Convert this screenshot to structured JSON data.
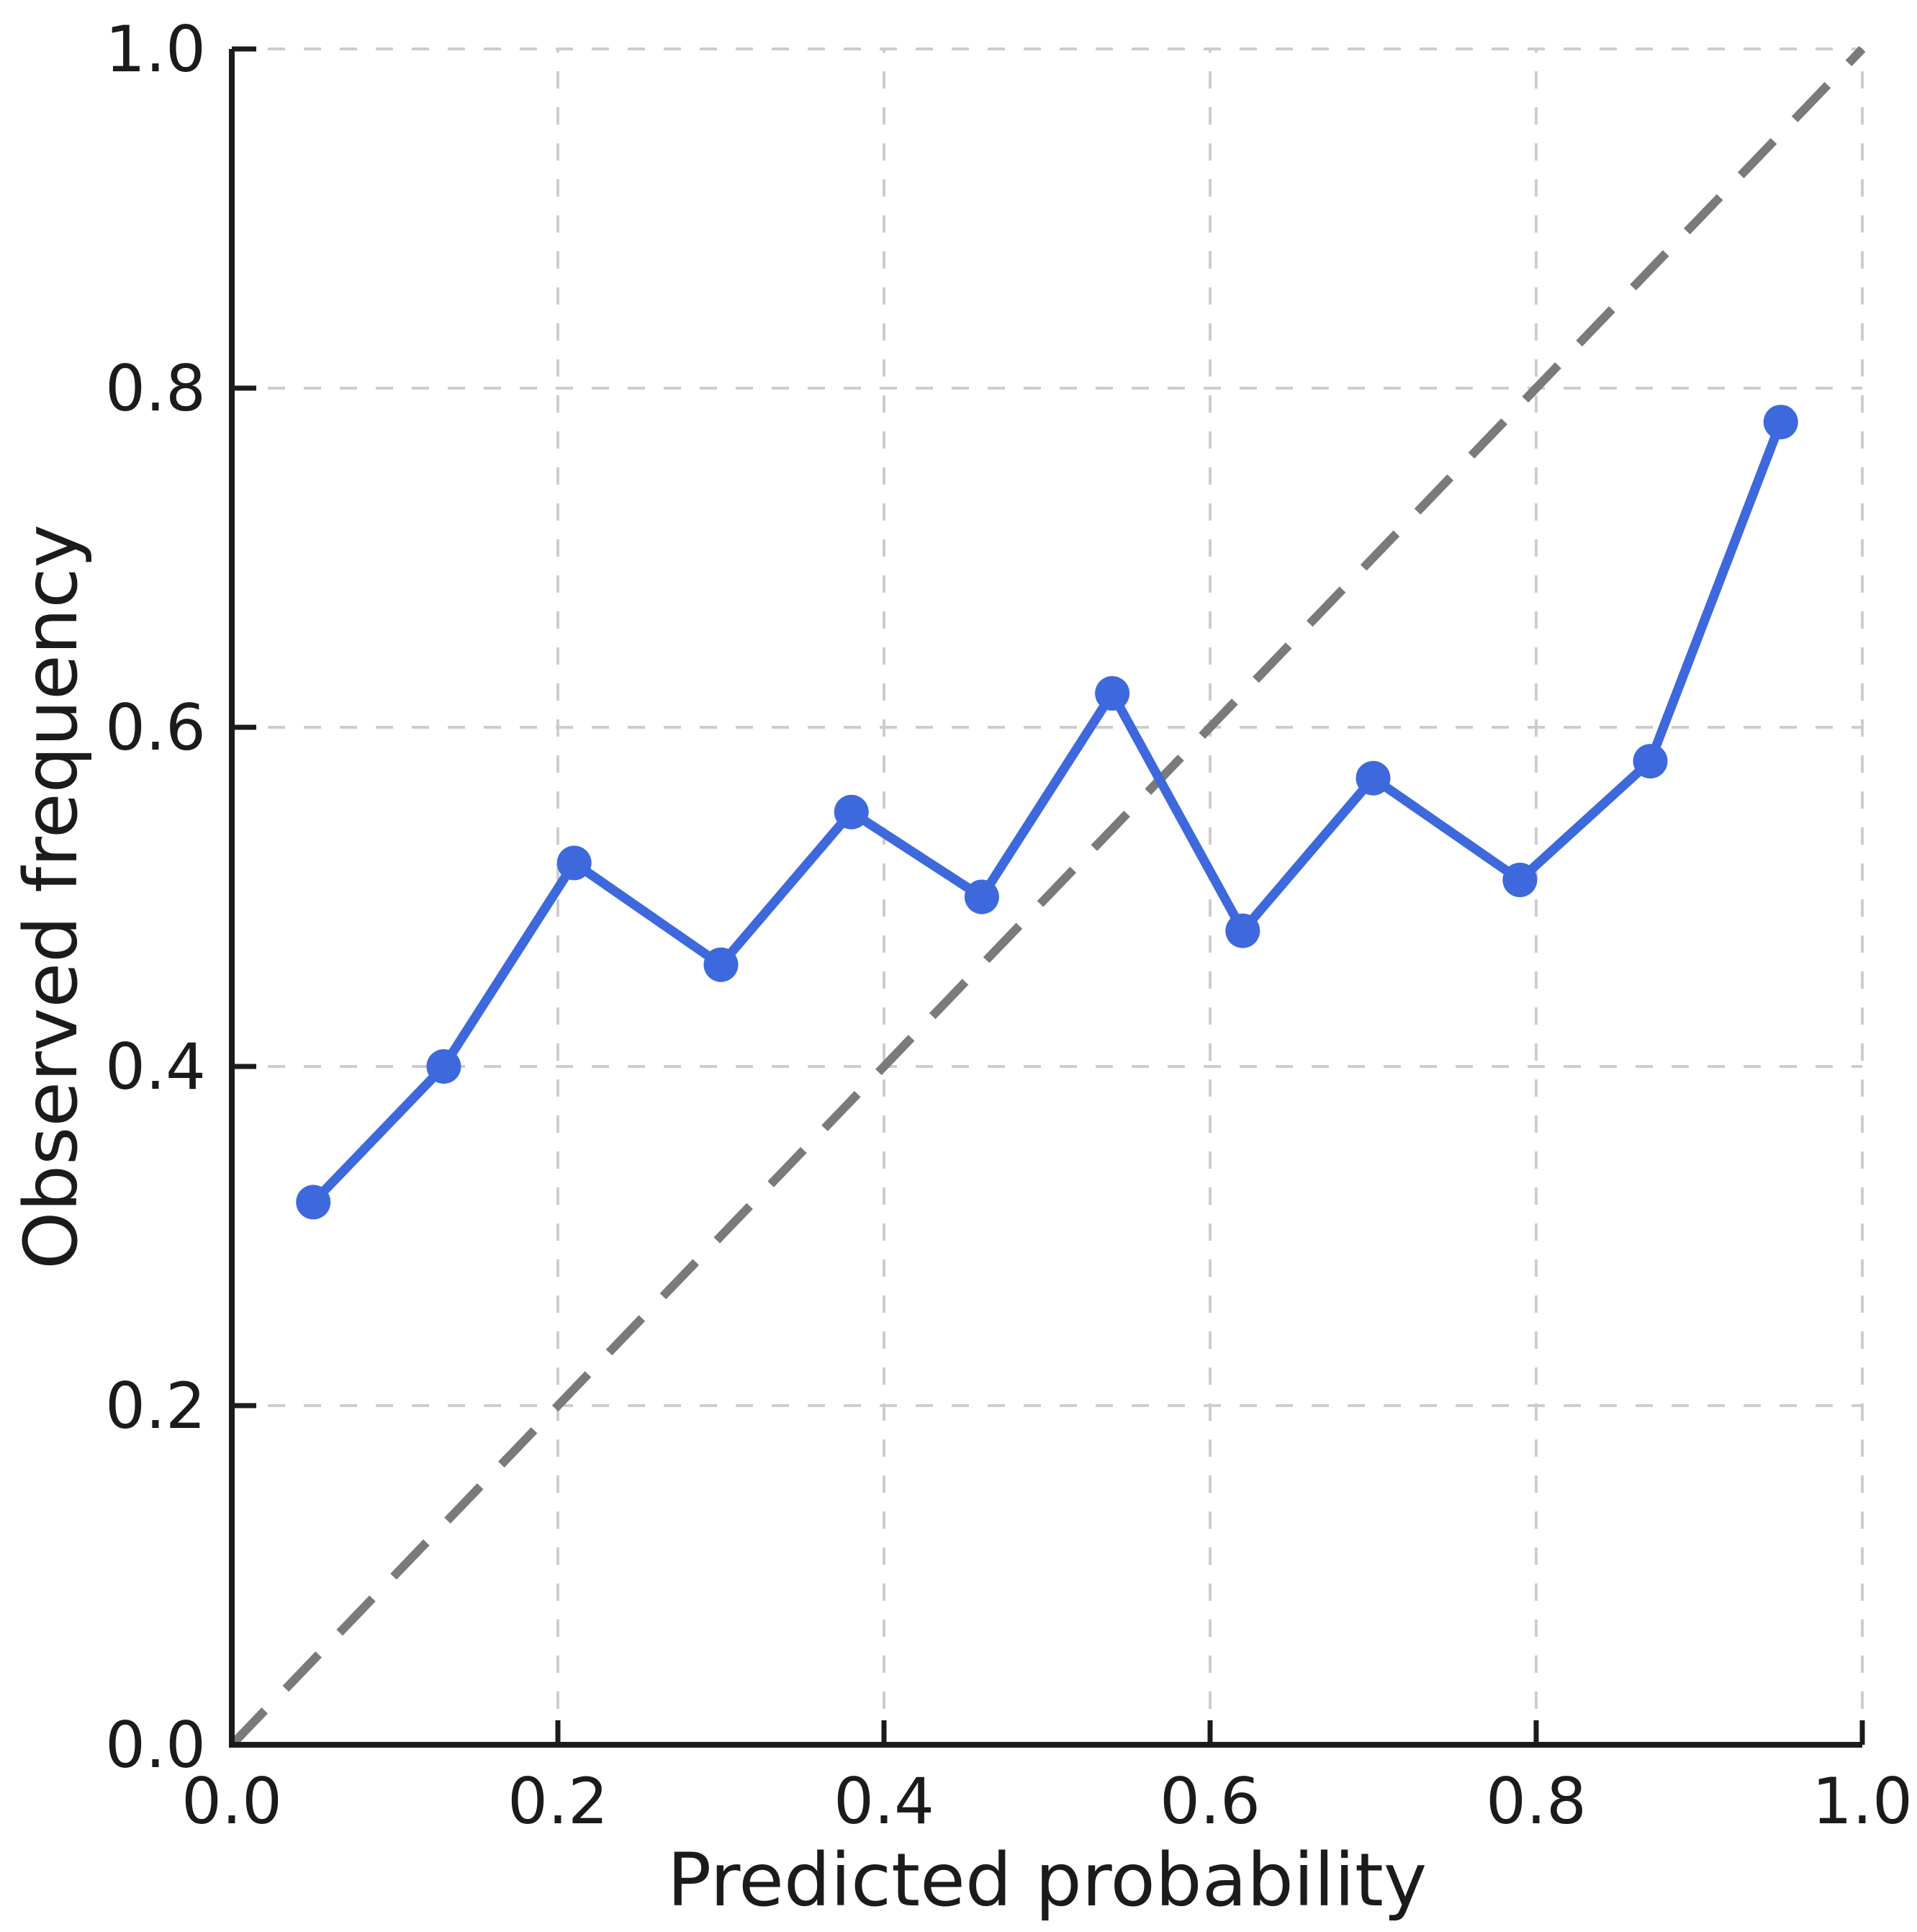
{
  "chart_data": {
    "type": "line",
    "title": "",
    "xlabel": "Predicted probability",
    "ylabel": "Observed frequency",
    "xlim": [
      0.0,
      1.0
    ],
    "ylim": [
      0.0,
      1.0
    ],
    "x_ticks": [
      0.0,
      0.2,
      0.4,
      0.6,
      0.8,
      1.0
    ],
    "x_tick_labels": [
      "0.0",
      "0.2",
      "0.4",
      "0.6",
      "0.8",
      "1.0"
    ],
    "y_ticks": [
      0.0,
      0.2,
      0.4,
      0.6,
      0.8,
      1.0
    ],
    "y_tick_labels": [
      "0.0",
      "0.2",
      "0.4",
      "0.6",
      "0.8",
      "1.0"
    ],
    "grid": "dashed",
    "legend": "none",
    "series": [
      {
        "name": "calibration-curve",
        "style": "solid-line-with-markers",
        "color": "#3E69DC",
        "x": [
          0.05,
          0.13,
          0.21,
          0.3,
          0.38,
          0.46,
          0.54,
          0.62,
          0.7,
          0.79,
          0.87,
          0.95
        ],
        "y": [
          0.32,
          0.4,
          0.52,
          0.46,
          0.55,
          0.5,
          0.62,
          0.48,
          0.57,
          0.51,
          0.58,
          0.78
        ]
      },
      {
        "name": "perfect-calibration-diagonal",
        "style": "dashed-line",
        "color": "#7A7A7A",
        "x": [
          0.0,
          1.0
        ],
        "y": [
          0.0,
          1.0
        ]
      }
    ],
    "colors": {
      "gridline": "#CDCDCD",
      "axis": "#1B1B1B",
      "text": "#1B1B1B",
      "background": "#FFFFFF"
    }
  }
}
